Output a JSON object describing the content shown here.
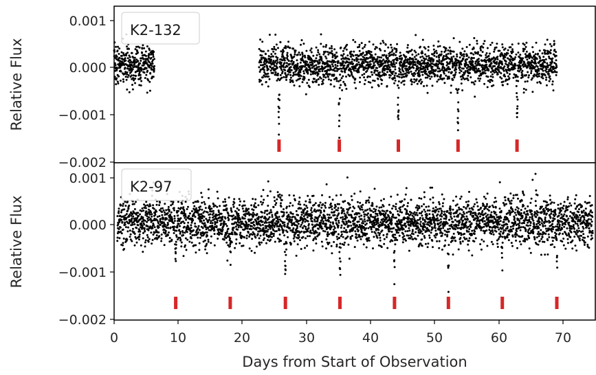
{
  "chart_data": [
    {
      "type": "scatter",
      "label": "K2-132",
      "ylabel": "Relative Flux",
      "xlabel": "",
      "xlim": [
        0,
        75
      ],
      "ylim": [
        -0.002,
        0.0012
      ],
      "yticks": [
        0.001,
        0.0,
        -0.001,
        -0.002
      ],
      "ytick_labels": [
        "0.001",
        "0.000",
        "−0.001",
        "−0.002"
      ],
      "marker_color": "#000000",
      "transit_marker_color": "#d62728",
      "observation_segments": [
        [
          0.0,
          6.3
        ],
        [
          22.6,
          69.0
        ]
      ],
      "flux_scatter": 0.0002,
      "transits": [
        {
          "time": 25.7,
          "depth": -0.0013
        },
        {
          "time": 35.1,
          "depth": -0.00145
        },
        {
          "time": 44.3,
          "depth": -0.00115
        },
        {
          "time": 53.6,
          "depth": -0.00135
        },
        {
          "time": 62.8,
          "depth": -0.00115
        }
      ],
      "transit_marker_y": -0.00165
    },
    {
      "type": "scatter",
      "label": "K2-97",
      "ylabel": "Relative Flux",
      "xlabel": "Days from Start of Observation",
      "xlim": [
        0,
        75
      ],
      "ylim": [
        -0.002,
        0.0012
      ],
      "xticks": [
        0,
        10,
        20,
        30,
        40,
        50,
        60,
        70
      ],
      "xtick_labels": [
        "0",
        "10",
        "20",
        "30",
        "40",
        "50",
        "60",
        "70"
      ],
      "yticks": [
        0.001,
        0.0,
        -0.001,
        -0.002
      ],
      "ytick_labels": [
        "0.001",
        "0.000",
        "−0.001",
        "−0.002"
      ],
      "marker_color": "#000000",
      "transit_marker_color": "#d62728",
      "observation_segments": [
        [
          0.5,
          74.6
        ]
      ],
      "flux_scatter": 0.00024,
      "transits": [
        {
          "time": 9.6,
          "depth": -0.0009
        },
        {
          "time": 18.1,
          "depth": -0.0008
        },
        {
          "time": 26.7,
          "depth": -0.0011
        },
        {
          "time": 35.2,
          "depth": -0.001
        },
        {
          "time": 43.7,
          "depth": -0.0008
        },
        {
          "time": 52.1,
          "depth": -0.0013
        },
        {
          "time": 60.5,
          "depth": -0.0009
        },
        {
          "time": 69.0,
          "depth": -0.0009
        }
      ],
      "transit_marker_y": -0.00165
    }
  ]
}
